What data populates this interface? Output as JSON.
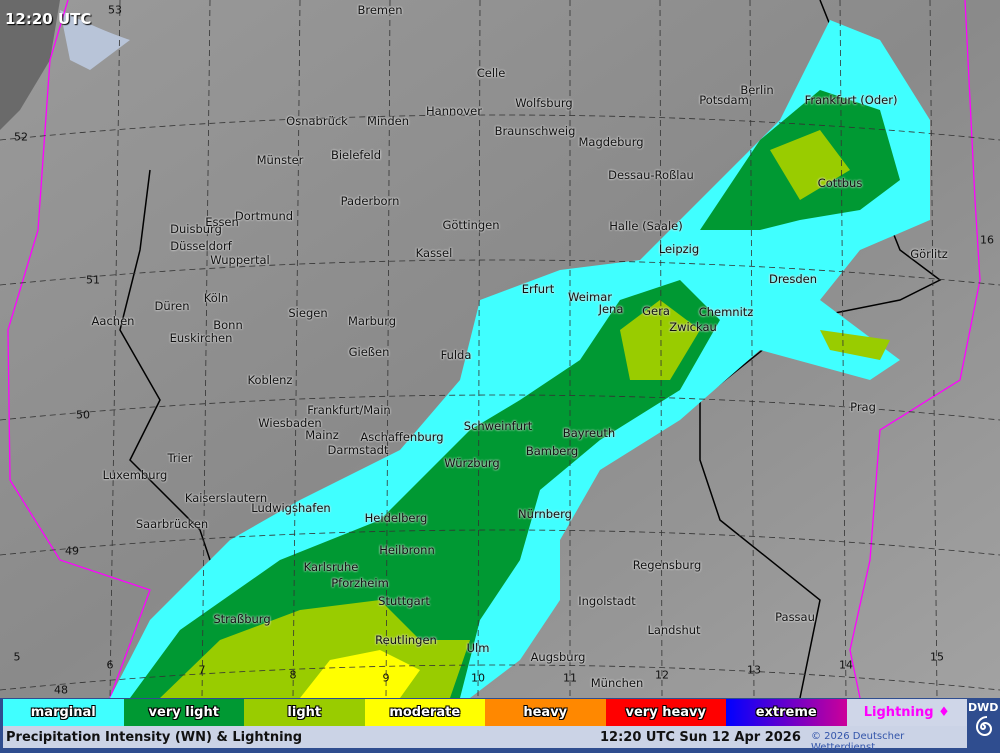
{
  "header": {
    "time": "12:20 UTC"
  },
  "legend": [
    {
      "label": "marginal",
      "color": "#40ffff"
    },
    {
      "label": "very light",
      "color": "#009933"
    },
    {
      "label": "light",
      "color": "#99cc00"
    },
    {
      "label": "moderate",
      "color": "#ffff00"
    },
    {
      "label": "heavy",
      "color": "#ff8800"
    },
    {
      "label": "very heavy",
      "color": "#ff0000"
    },
    {
      "label": "extreme",
      "color": "#0000ff"
    },
    {
      "label": "Lightning ♦",
      "color": "#cfd6e8"
    }
  ],
  "footer": {
    "title": "Precipitation Intensity (WN) & Lightning",
    "datetime": "12:20 UTC Sun 12 Apr 2026",
    "copyright": "© 2026 Deutscher Wetterdienst",
    "logo": "DWD"
  },
  "cities": [
    [
      "Bremen",
      380,
      10
    ],
    [
      "Celle",
      491,
      73
    ],
    [
      "Berlin",
      757,
      90
    ],
    [
      "Potsdam",
      724,
      100
    ],
    [
      "Frankfurt (Oder)",
      851,
      100
    ],
    [
      "Hannover",
      454,
      111
    ],
    [
      "Wolfsburg",
      544,
      103
    ],
    [
      "Osnabrück",
      317,
      121
    ],
    [
      "Minden",
      388,
      121
    ],
    [
      "Braunschweig",
      535,
      131
    ],
    [
      "Magdeburg",
      611,
      142
    ],
    [
      "Münster",
      280,
      160
    ],
    [
      "Bielefeld",
      356,
      155
    ],
    [
      "Cottbus",
      840,
      183
    ],
    [
      "Dessau-Roßlau",
      651,
      175
    ],
    [
      "Paderborn",
      370,
      201
    ],
    [
      "Dortmund",
      264,
      216
    ],
    [
      "Duisburg",
      196,
      229
    ],
    [
      "Essen",
      222,
      222
    ],
    [
      "Göttingen",
      471,
      225
    ],
    [
      "Halle (Saale)",
      646,
      226
    ],
    [
      "Düsseldorf",
      201,
      246
    ],
    [
      "Leipzig",
      679,
      249
    ],
    [
      "Kassel",
      434,
      253
    ],
    [
      "Görlitz",
      929,
      254
    ],
    [
      "Wuppertal",
      240,
      260
    ],
    [
      "Dresden",
      793,
      279
    ],
    [
      "Erfurt",
      538,
      289
    ],
    [
      "Weimar",
      590,
      297
    ],
    [
      "Jena",
      611,
      309
    ],
    [
      "Gera",
      656,
      311
    ],
    [
      "Chemnitz",
      726,
      312
    ],
    [
      "Zwickau",
      693,
      327
    ],
    [
      "Düren",
      172,
      306
    ],
    [
      "Köln",
      216,
      298
    ],
    [
      "Aachen",
      113,
      321
    ],
    [
      "Bonn",
      228,
      325
    ],
    [
      "Siegen",
      308,
      313
    ],
    [
      "Marburg",
      372,
      321
    ],
    [
      "Euskirchen",
      201,
      338
    ],
    [
      "Gießen",
      369,
      352
    ],
    [
      "Fulda",
      456,
      355
    ],
    [
      "Koblenz",
      270,
      380
    ],
    [
      "Frankfurt/Main",
      349,
      410
    ],
    [
      "Prag",
      863,
      407
    ],
    [
      "Wiesbaden",
      290,
      423
    ],
    [
      "Mainz",
      322,
      435
    ],
    [
      "Aschaffenburg",
      402,
      437
    ],
    [
      "Schweinfurt",
      498,
      426
    ],
    [
      "Bayreuth",
      589,
      433
    ],
    [
      "Darmstadt",
      358,
      450
    ],
    [
      "Bamberg",
      552,
      451
    ],
    [
      "Trier",
      180,
      458
    ],
    [
      "Würzburg",
      472,
      463
    ],
    [
      "Luxemburg",
      135,
      475
    ],
    [
      "Kaiserslautern",
      226,
      498
    ],
    [
      "Ludwigshafen",
      291,
      508
    ],
    [
      "Heidelberg",
      396,
      518
    ],
    [
      "Nürnberg",
      545,
      514
    ],
    [
      "Saarbrücken",
      172,
      524
    ],
    [
      "Heilbronn",
      407,
      550
    ],
    [
      "Karlsruhe",
      331,
      567
    ],
    [
      "Regensburg",
      667,
      565
    ],
    [
      "Pforzheim",
      360,
      583
    ],
    [
      "Stuttgart",
      404,
      601
    ],
    [
      "Ingolstadt",
      607,
      601
    ],
    [
      "Straßburg",
      242,
      619
    ],
    [
      "Passau",
      795,
      617
    ],
    [
      "Landshut",
      674,
      630
    ],
    [
      "Reutlingen",
      406,
      640
    ],
    [
      "Ulm",
      478,
      648
    ],
    [
      "Augsburg",
      558,
      657
    ],
    [
      "München",
      617,
      683
    ]
  ],
  "grid_labels": [
    [
      "53",
      115,
      10
    ],
    [
      "52",
      21,
      137
    ],
    [
      "51",
      93,
      280
    ],
    [
      "50",
      83,
      415
    ],
    [
      "49",
      72,
      551
    ],
    [
      "48",
      61,
      690
    ],
    [
      "5",
      17,
      657
    ],
    [
      "6",
      110,
      665
    ],
    [
      "7",
      202,
      670
    ],
    [
      "8",
      293,
      675
    ],
    [
      "9",
      386,
      678
    ],
    [
      "10",
      478,
      678
    ],
    [
      "11",
      570,
      678
    ],
    [
      "12",
      662,
      675
    ],
    [
      "13",
      754,
      670
    ],
    [
      "14",
      846,
      665
    ],
    [
      "15",
      937,
      657
    ],
    [
      "16",
      987,
      240
    ]
  ]
}
